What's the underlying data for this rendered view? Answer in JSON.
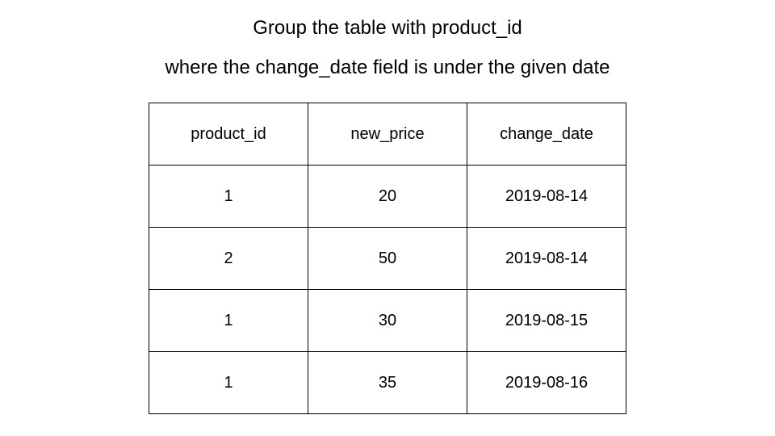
{
  "title": {
    "line1": "Group the table with product_id",
    "line2": "where the change_date field is under the given date"
  },
  "table": {
    "columns": [
      "product_id",
      "new_price",
      "change_date"
    ],
    "rows": [
      [
        "1",
        "20",
        "2019-08-14"
      ],
      [
        "2",
        "50",
        "2019-08-14"
      ],
      [
        "1",
        "30",
        "2019-08-15"
      ],
      [
        "1",
        "35",
        "2019-08-16"
      ]
    ]
  }
}
